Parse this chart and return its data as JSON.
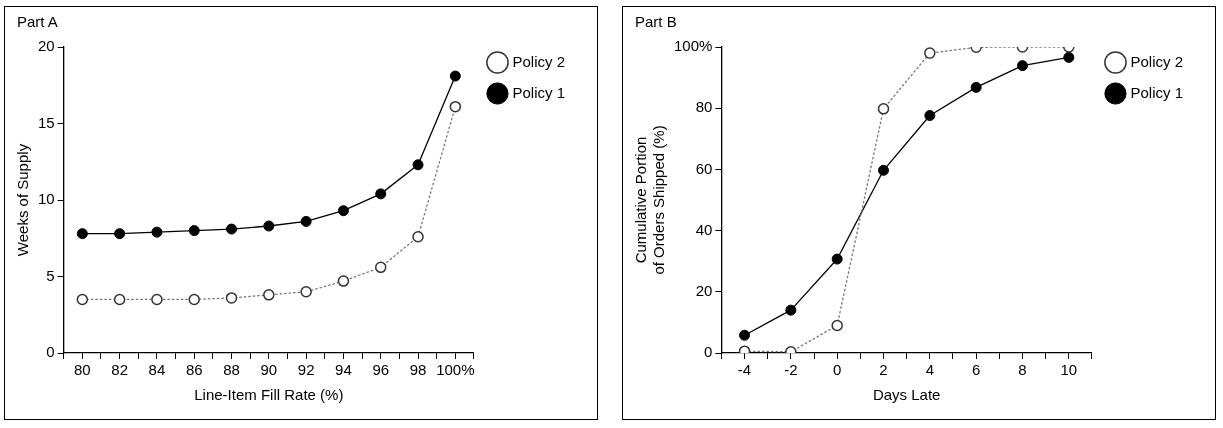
{
  "chart_data": [
    {
      "type": "line",
      "title": "Part A",
      "xlabel": "Line-Item Fill Rate (%)",
      "ylabel": "Weeks of Supply",
      "x": [
        80,
        82,
        84,
        86,
        88,
        90,
        92,
        94,
        96,
        98,
        100
      ],
      "series": [
        {
          "name": "Policy 1",
          "color": "#000000",
          "line_style": "solid",
          "values": [
            7.8,
            7.8,
            7.9,
            8.0,
            8.1,
            8.3,
            8.6,
            9.3,
            10.4,
            12.3,
            18.1
          ]
        },
        {
          "name": "Policy 2",
          "color": "#777777",
          "line_style": "dotted",
          "values": [
            3.5,
            3.5,
            3.5,
            3.5,
            3.6,
            3.8,
            4.0,
            4.7,
            5.6,
            7.6,
            16.1
          ]
        }
      ],
      "xlim": [
        79,
        101
      ],
      "xticks": [
        {
          "value": 79,
          "label": null
        },
        80,
        {
          "value": 81,
          "label": null
        },
        82,
        {
          "value": 83,
          "label": null
        },
        84,
        {
          "value": 85,
          "label": null
        },
        86,
        {
          "value": 87,
          "label": null
        },
        88,
        {
          "value": 89,
          "label": null
        },
        90,
        {
          "value": 91,
          "label": null
        },
        92,
        {
          "value": 93,
          "label": null
        },
        94,
        {
          "value": 95,
          "label": null
        },
        96,
        {
          "value": 97,
          "label": null
        },
        98,
        {
          "value": 99,
          "label": null
        },
        {
          "value": 100,
          "label": "100%"
        },
        {
          "value": 101,
          "label": null
        }
      ],
      "ylim": [
        0,
        20
      ],
      "yticks": [
        0,
        5,
        10,
        15,
        20
      ],
      "grid": false,
      "legend": "top right",
      "marker": "circle"
    },
    {
      "type": "line",
      "title": "Part B",
      "xlabel": "Days Late",
      "ylabel": "Cumulative Portion\nof Orders Shipped (%)",
      "x": [
        -4,
        -2,
        0,
        2,
        4,
        6,
        8,
        10
      ],
      "series": [
        {
          "name": "Policy 1",
          "color": "#000000",
          "line_style": "solid",
          "values": [
            5.8,
            14.0,
            30.7,
            59.7,
            77.6,
            86.8,
            93.9,
            96.6
          ]
        },
        {
          "name": "Policy 2",
          "color": "#777777",
          "line_style": "dotted",
          "values": [
            0.6,
            0.4,
            9.0,
            79.8,
            98.0,
            99.9,
            100,
            100
          ]
        }
      ],
      "xlim": [
        -5,
        11
      ],
      "xticks": [
        {
          "value": -5,
          "label": null
        },
        -4,
        {
          "value": -3,
          "label": null
        },
        -2,
        {
          "value": -1,
          "label": null
        },
        0,
        {
          "value": 1,
          "label": null
        },
        2,
        {
          "value": 3,
          "label": null
        },
        4,
        {
          "value": 5,
          "label": null
        },
        6,
        {
          "value": 7,
          "label": null
        },
        8,
        {
          "value": 9,
          "label": null
        },
        10,
        {
          "value": 11,
          "label": null
        }
      ],
      "ylim": [
        0,
        100
      ],
      "yticks": [
        0,
        20,
        40,
        60,
        80,
        {
          "value": 100,
          "label": "100%"
        }
      ],
      "grid": false,
      "legend": "top right",
      "marker": "circle"
    }
  ]
}
